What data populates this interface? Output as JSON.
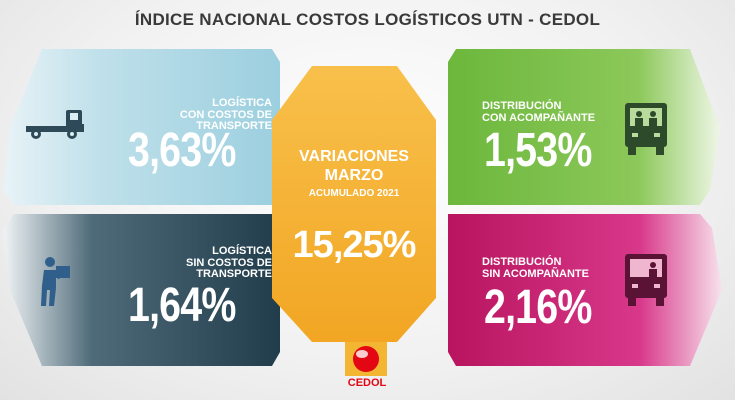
{
  "title": "ÍNDICE NACIONAL COSTOS LOGÍSTICOS UTN - CEDOL",
  "center": {
    "heading_line1": "VARIACIONES",
    "heading_line2": "MARZO",
    "subheading": "ACUMULADO 2021",
    "value": "15,25%"
  },
  "cards": [
    {
      "label": "LOGÍSTICA\nCON COSTOS DE\nTRANSPORTE",
      "value": "3,63%",
      "icon": "truck-icon",
      "color": "#a9d6e3"
    },
    {
      "label": "LOGÍSTICA\nSIN COSTOS DE\nTRANSPORTE",
      "value": "1,64%",
      "icon": "worker-carrying-box-icon",
      "color": "#2b4a5a"
    },
    {
      "label": "DISTRIBUCIÓN\nCON ACOMPAÑANTE",
      "value": "1,53%",
      "icon": "truck-front-two-people-icon",
      "color": "#7ec04a"
    },
    {
      "label": "DISTRIBUCIÓN\nSIN ACOMPAÑANTE",
      "value": "2,16%",
      "icon": "truck-front-driver-icon",
      "color": "#d1257a"
    }
  ],
  "brand": {
    "name": "CEDOL",
    "color": "#e30613",
    "logo_color": "#f2b632"
  },
  "center_color": "#f6b133"
}
